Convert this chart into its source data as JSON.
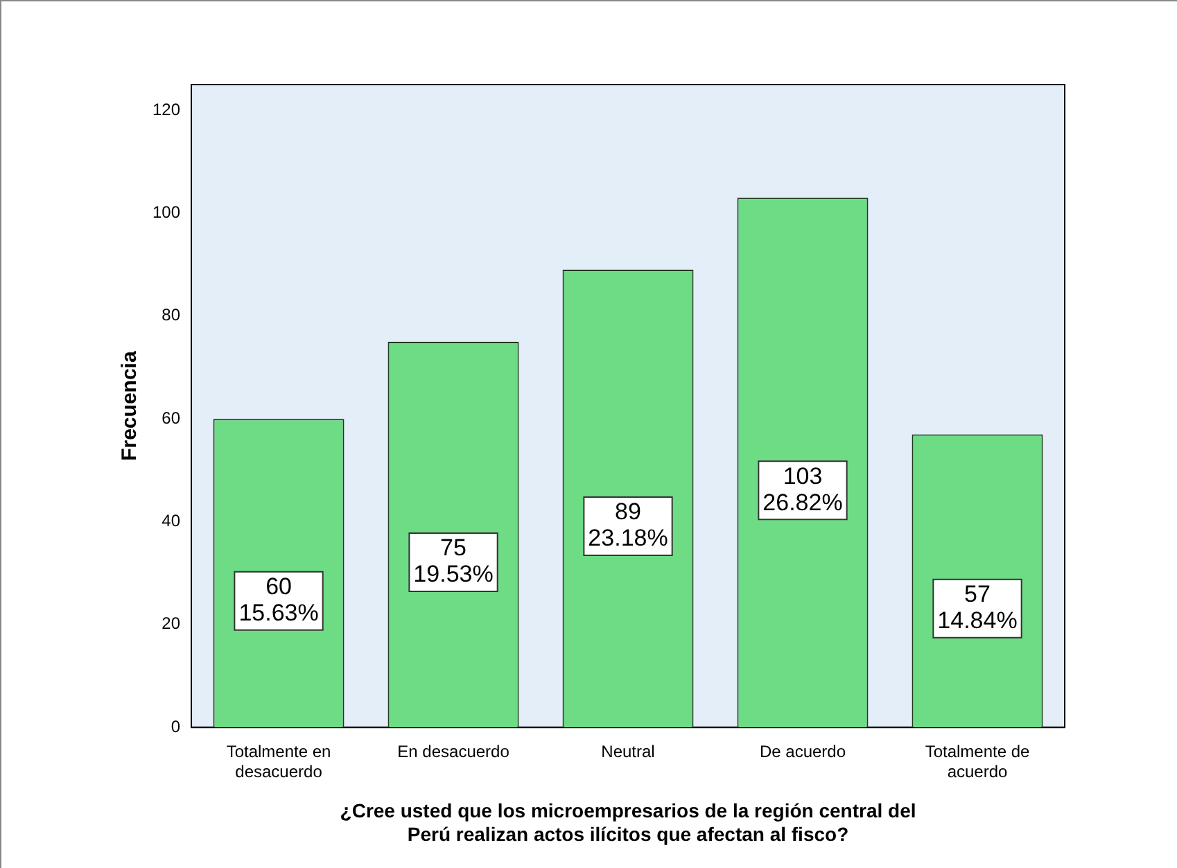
{
  "chart_data": {
    "type": "bar",
    "xlabel": "¿Cree usted que los microempresarios de la región central del Perú realizan actos ilícitos que afectan al fisco?",
    "ylabel": "Frecuencia",
    "categories": [
      "Totalmente en desacuerdo",
      "En desacuerdo",
      "Neutral",
      "De acuerdo",
      "Totalmente de acuerdo"
    ],
    "values": [
      60,
      75,
      89,
      103,
      57
    ],
    "color": "#6ddc85",
    "value_labels": [
      "60\n15.63%",
      "75\n19.53%",
      "89\n23.18%",
      "103\n26.82%",
      "57\n14.84%"
    ],
    "ylim": [
      0,
      125
    ],
    "yticks": [
      0,
      20,
      40,
      60,
      80,
      100,
      120
    ],
    "grid": false,
    "legend": false
  }
}
